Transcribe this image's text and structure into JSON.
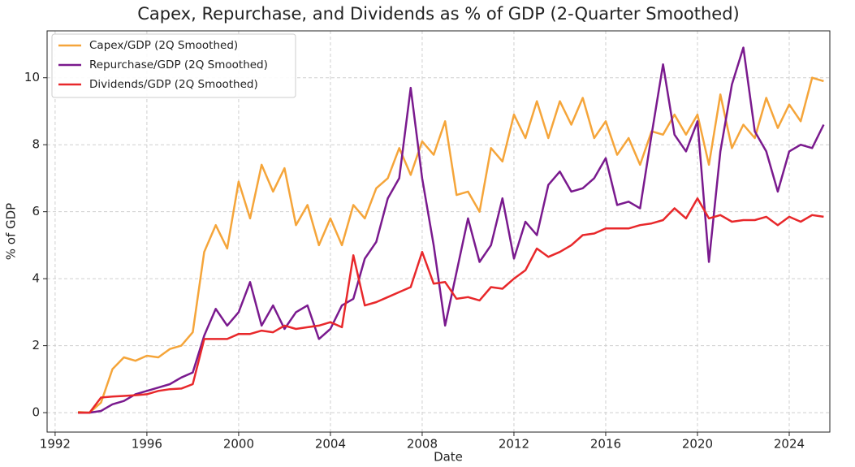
{
  "chart_data": {
    "type": "line",
    "title": "Capex, Repurchase, and Dividends as % of GDP (2-Quarter Smoothed)",
    "x_label": "Date",
    "y_label": "% of GDP",
    "x": [
      1993.0,
      1993.5,
      1994.0,
      1994.5,
      1995.0,
      1995.5,
      1996.0,
      1996.5,
      1997.0,
      1997.5,
      1998.0,
      1998.5,
      1999.0,
      1999.5,
      2000.0,
      2000.5,
      2001.0,
      2001.5,
      2002.0,
      2002.5,
      2003.0,
      2003.5,
      2004.0,
      2004.5,
      2005.0,
      2005.5,
      2006.0,
      2006.5,
      2007.0,
      2007.5,
      2008.0,
      2008.5,
      2009.0,
      2009.5,
      2010.0,
      2010.5,
      2011.0,
      2011.5,
      2012.0,
      2012.5,
      2013.0,
      2013.5,
      2014.0,
      2014.5,
      2015.0,
      2015.5,
      2016.0,
      2016.5,
      2017.0,
      2017.5,
      2018.0,
      2018.5,
      2019.0,
      2019.5,
      2020.0,
      2020.5,
      2021.0,
      2021.5,
      2022.0,
      2022.5,
      2023.0,
      2023.5,
      2024.0,
      2024.5,
      2025.0,
      2025.5
    ],
    "series": [
      {
        "name": "Capex/GDP (2Q Smoothed)",
        "color": "#f5a53a",
        "values": [
          0.02,
          0.0,
          0.3,
          1.3,
          1.65,
          1.55,
          1.7,
          1.65,
          1.9,
          2.0,
          2.4,
          4.8,
          5.6,
          4.9,
          6.9,
          5.8,
          7.4,
          6.6,
          7.3,
          5.6,
          6.2,
          5.0,
          5.8,
          5.0,
          6.2,
          5.8,
          6.7,
          7.0,
          7.9,
          7.1,
          8.1,
          7.7,
          8.7,
          6.5,
          6.6,
          6.0,
          7.9,
          7.5,
          8.9,
          8.2,
          9.3,
          8.2,
          9.3,
          8.6,
          9.4,
          8.2,
          8.7,
          7.7,
          8.2,
          7.4,
          8.4,
          8.3,
          8.9,
          8.3,
          8.9,
          7.4,
          9.5,
          7.9,
          8.6,
          8.2,
          9.4,
          8.5,
          9.2,
          8.7,
          10.0,
          9.9
        ]
      },
      {
        "name": "Repurchase/GDP (2Q Smoothed)",
        "color": "#7a1a8e",
        "values": [
          0.0,
          0.0,
          0.05,
          0.25,
          0.35,
          0.55,
          0.65,
          0.75,
          0.85,
          1.05,
          1.2,
          2.3,
          3.1,
          2.6,
          3.0,
          3.9,
          2.6,
          3.2,
          2.5,
          3.0,
          3.2,
          2.2,
          2.5,
          3.2,
          3.4,
          4.6,
          5.1,
          6.4,
          7.0,
          9.7,
          7.0,
          5.0,
          2.6,
          4.2,
          5.8,
          4.5,
          5.0,
          6.4,
          4.6,
          5.7,
          5.3,
          6.8,
          7.2,
          6.6,
          6.7,
          7.0,
          7.6,
          6.2,
          6.3,
          6.1,
          8.3,
          10.4,
          8.3,
          7.8,
          8.7,
          4.5,
          7.8,
          9.8,
          10.9,
          8.4,
          7.8,
          6.6,
          7.8,
          8.0,
          7.9,
          8.6
        ]
      },
      {
        "name": "Dividends/GDP (2Q Smoothed)",
        "color": "#e8282b",
        "values": [
          0.0,
          0.0,
          0.45,
          0.48,
          0.5,
          0.52,
          0.55,
          0.65,
          0.7,
          0.72,
          0.85,
          2.2,
          2.2,
          2.2,
          2.35,
          2.35,
          2.45,
          2.4,
          2.6,
          2.5,
          2.55,
          2.6,
          2.7,
          2.55,
          4.7,
          3.2,
          3.3,
          3.45,
          3.6,
          3.75,
          4.8,
          3.85,
          3.9,
          3.4,
          3.45,
          3.35,
          3.75,
          3.7,
          4.0,
          4.25,
          4.9,
          4.65,
          4.8,
          5.0,
          5.3,
          5.35,
          5.5,
          5.5,
          5.5,
          5.6,
          5.65,
          5.75,
          6.1,
          5.8,
          6.4,
          5.8,
          5.9,
          5.7,
          5.75,
          5.75,
          5.85,
          5.6,
          5.85,
          5.7,
          5.9,
          5.85
        ]
      }
    ],
    "xlim": [
      1991.65,
      2025.77
    ],
    "xticks": [
      1992,
      1996,
      2000,
      2004,
      2008,
      2012,
      2016,
      2020,
      2024
    ],
    "ylim": [
      -0.58,
      11.4
    ],
    "yticks": [
      0,
      2,
      4,
      6,
      8,
      10
    ],
    "grid": true,
    "legend": "upper-left"
  }
}
